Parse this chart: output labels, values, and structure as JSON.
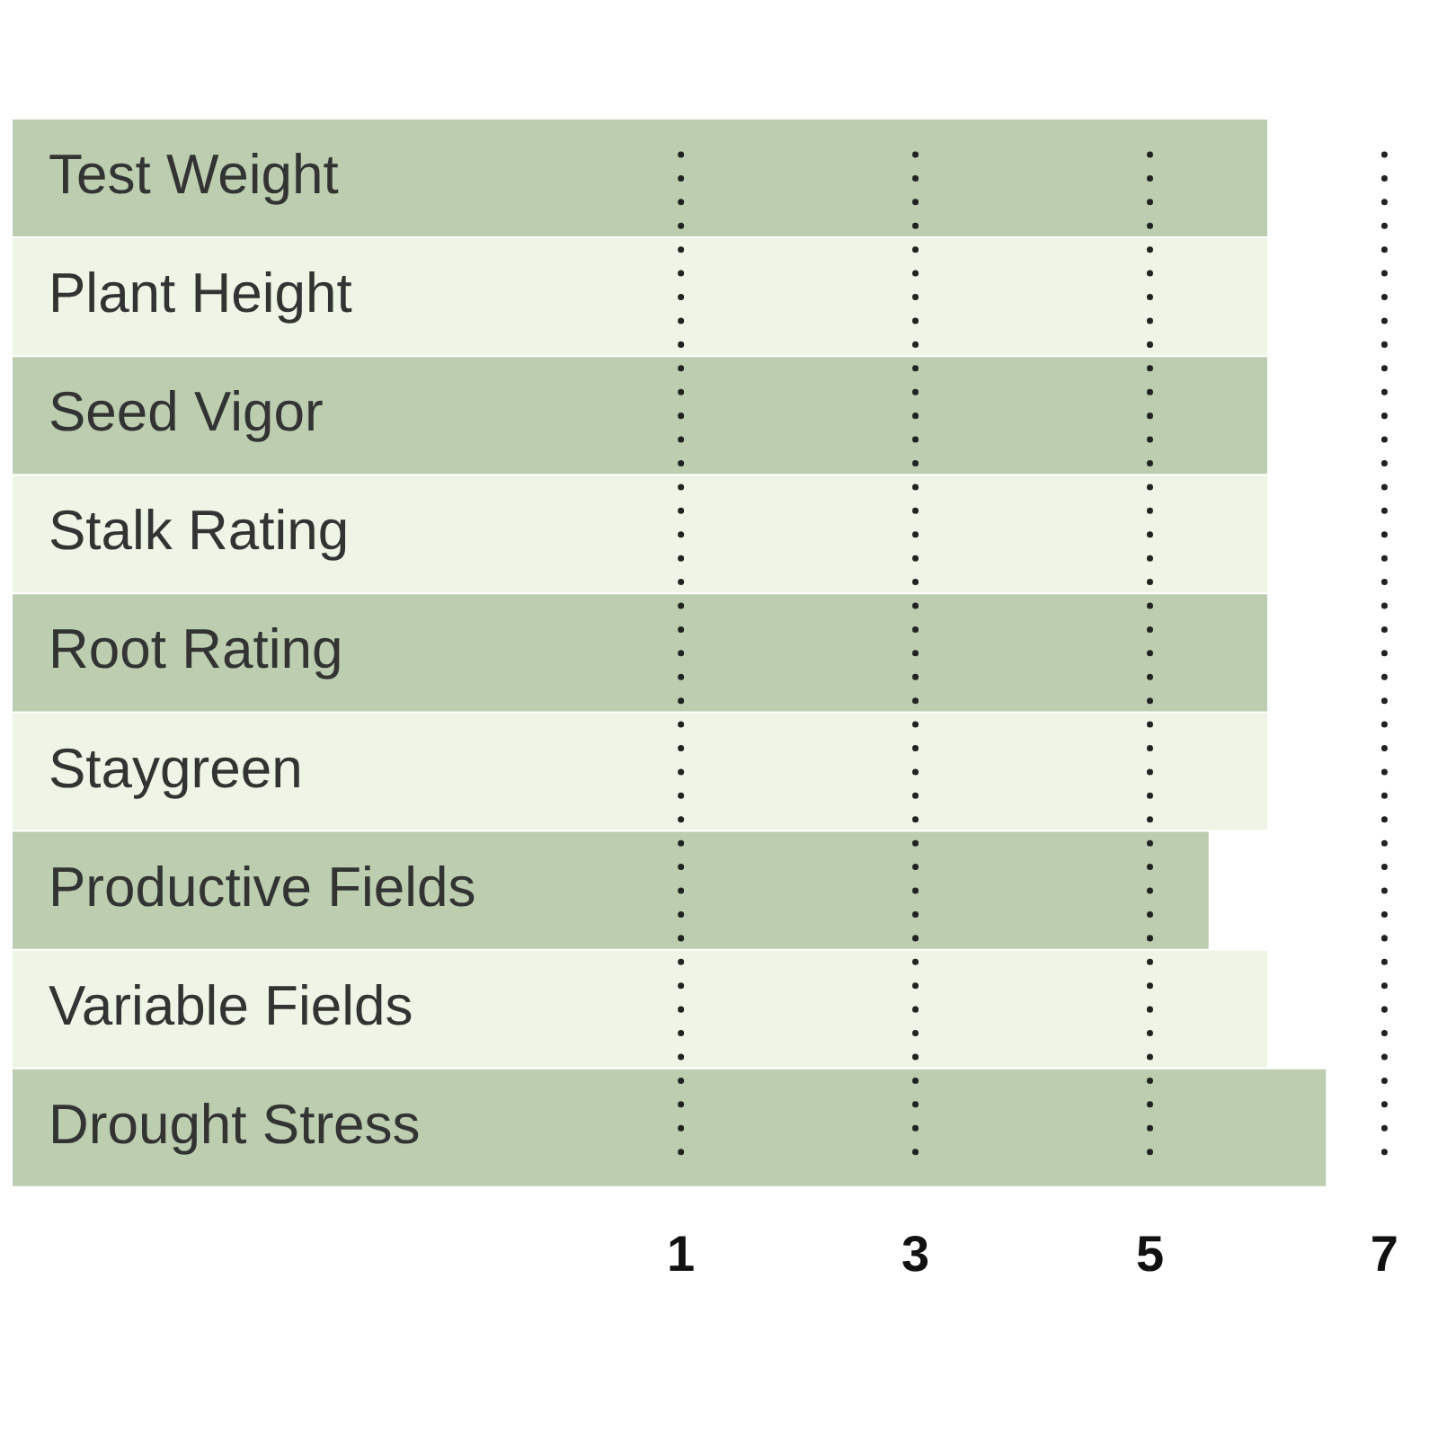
{
  "chart_data": {
    "type": "bar",
    "orientation": "horizontal",
    "categories": [
      "Test Weight",
      "Plant Height",
      "Seed Vigor",
      "Stalk Rating",
      "Root Rating",
      "Staygreen",
      "Productive Fields",
      "Variable Fields",
      "Drought Stress"
    ],
    "base": [
      -4.7,
      -4.7,
      -4.7,
      -4.7,
      -4.7,
      -4.7,
      -4.7,
      -4.7,
      -4.7
    ],
    "values": [
      10.7,
      10.7,
      10.7,
      10.7,
      10.7,
      10.7,
      10.2,
      10.7,
      11.2
    ],
    "colors": [
      "#bccdb0",
      "#eef5e6",
      "#bccdb0",
      "#eef5e6",
      "#bccdb0",
      "#eef5e6",
      "#bccdb0",
      "#eef5e6",
      "#bccdb0"
    ],
    "xlim": [
      -4.7,
      7
    ],
    "xticks": [
      1,
      3,
      5,
      7
    ],
    "grid": "x",
    "legend": false
  }
}
